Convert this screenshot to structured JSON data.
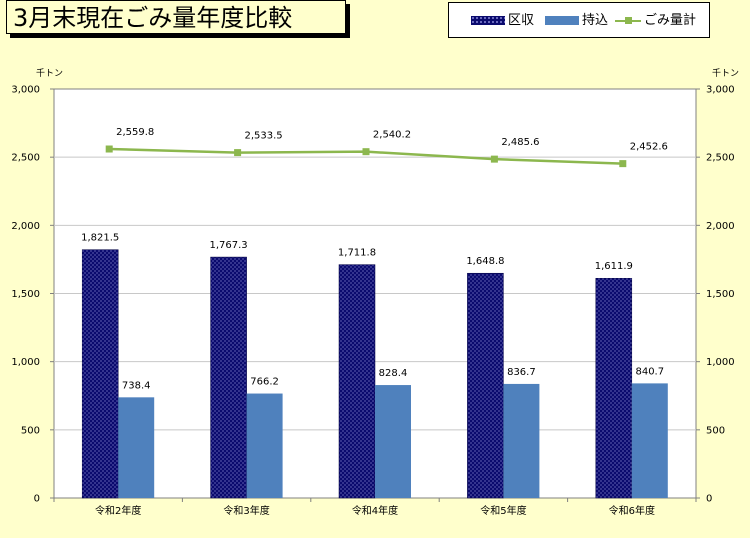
{
  "title": "3月末現在ごみ量年度比較",
  "legend": {
    "series1": "区収",
    "series2": "持込",
    "series3": "ごみ量計"
  },
  "axis": {
    "left_unit": "千トン",
    "right_unit": "千トン"
  },
  "colors": {
    "series1": "#0A0A6E",
    "series2": "#4F81BD",
    "series3": "#8CB74E",
    "background": "#FFFFCC"
  },
  "chart_data": {
    "type": "bar",
    "categories": [
      "令和2年度",
      "令和3年度",
      "令和4年度",
      "令和5年度",
      "令和6年度"
    ],
    "series": [
      {
        "name": "区収",
        "type": "bar",
        "values": [
          1821.5,
          1767.3,
          1711.8,
          1648.8,
          1611.9
        ],
        "labels": [
          "1,821.5",
          "1,767.3",
          "1,711.8",
          "1,648.8",
          "1,611.9"
        ]
      },
      {
        "name": "持込",
        "type": "bar",
        "values": [
          738.4,
          766.2,
          828.4,
          836.7,
          840.7
        ],
        "labels": [
          "738.4",
          "766.2",
          "828.4",
          "836.7",
          "840.7"
        ]
      },
      {
        "name": "ごみ量計",
        "type": "line",
        "values": [
          2559.8,
          2533.5,
          2540.2,
          2485.6,
          2452.6
        ],
        "labels": [
          "2,559.8",
          "2,533.5",
          "2,540.2",
          "2,485.6",
          "2,452.6"
        ]
      }
    ],
    "ylim": [
      0,
      3000
    ],
    "yticks": [
      "0",
      "500",
      "1,000",
      "1,500",
      "2,000",
      "2,500",
      "3,000"
    ],
    "ytick_values": [
      0,
      500,
      1000,
      1500,
      2000,
      2500,
      3000
    ],
    "grid": true,
    "legend_position": "top-right"
  }
}
